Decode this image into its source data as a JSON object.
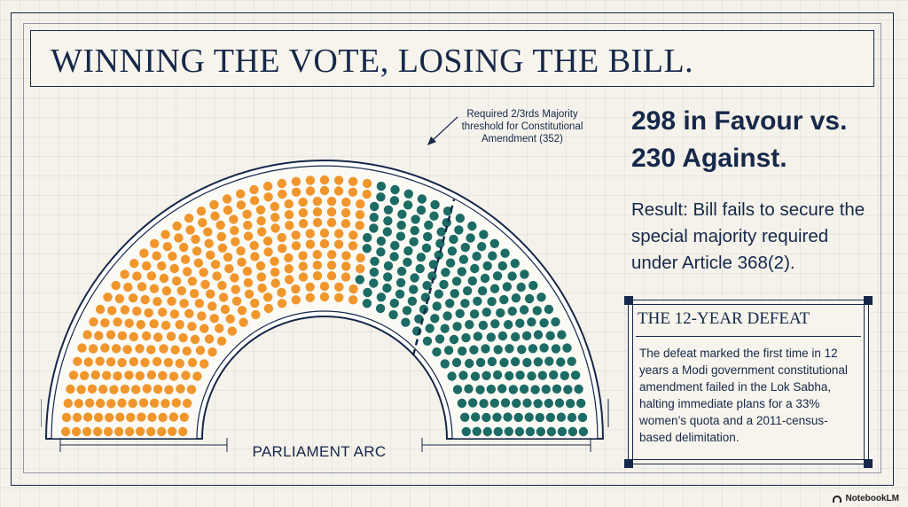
{
  "title": "WINNING THE VOTE, LOSING THE BILL.",
  "diagram": {
    "threshold_label": "Required 2/3rds Majority threshold for Constitutional Amendment (352)",
    "arc_label": "PARLIAMENT ARC",
    "favour_count": 298,
    "against_count": 230,
    "threshold_seats": 352,
    "colors": {
      "favour": "#f0962c",
      "against": "#1c6b64",
      "frame": "#16284a",
      "background": "#f4f2ea"
    }
  },
  "headline": "298 in Favour vs. 230 Against.",
  "result": "Result: Bill fails to secure the special majority required under Article 368(2).",
  "sidebox": {
    "title": "THE 12-YEAR DEFEAT",
    "body": "The defeat marked the first time in 12 years a Modi government constitutional amendment failed in the Lok Sabha, halting immediate plans for a 33% women’s quota and a 2011-census-based delimitation."
  },
  "brand": "NotebookLM"
}
